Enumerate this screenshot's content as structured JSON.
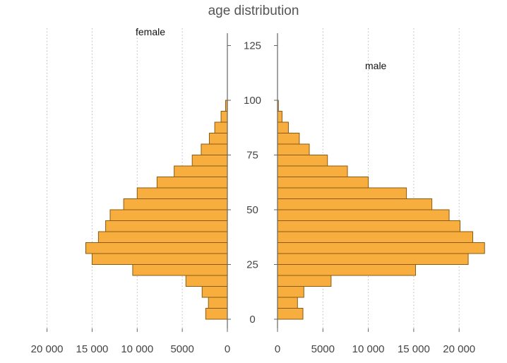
{
  "chart_data": {
    "type": "bar",
    "orientation": "horizontal",
    "title": "age distribution",
    "bin_width": 5,
    "age_bins": [
      0,
      5,
      10,
      15,
      20,
      25,
      30,
      35,
      40,
      45,
      50,
      55,
      60,
      65,
      70,
      75,
      80,
      85,
      90,
      95
    ],
    "age_axis": {
      "range": [
        0,
        125
      ],
      "ticks": [
        0,
        25,
        50,
        75,
        100,
        125
      ]
    },
    "series": [
      {
        "name": "female",
        "side": "left",
        "values": [
          2400,
          2100,
          2800,
          4600,
          10500,
          15000,
          15700,
          14300,
          13500,
          13000,
          11500,
          10000,
          7800,
          5900,
          3900,
          2900,
          2000,
          1400,
          700,
          200
        ]
      },
      {
        "name": "male",
        "side": "right",
        "values": [
          2800,
          2200,
          2900,
          5900,
          15200,
          21000,
          22800,
          21500,
          20100,
          18900,
          17000,
          14200,
          10000,
          7700,
          5500,
          3500,
          2400,
          1200,
          500,
          100
        ]
      }
    ],
    "count_axis": {
      "female": {
        "range": [
          0,
          20000
        ],
        "ticks": [
          20000,
          15000,
          10000,
          5000,
          0
        ],
        "tick_labels": [
          "20 000",
          "15 000",
          "10 000",
          "5000",
          "0"
        ]
      },
      "male": {
        "range": [
          0,
          23000
        ],
        "ticks": [
          0,
          5000,
          10000,
          15000,
          20000
        ],
        "tick_labels": [
          "0",
          "5000",
          "10 000",
          "15 000",
          "20 000"
        ]
      }
    },
    "grid": "vertical-dotted"
  }
}
